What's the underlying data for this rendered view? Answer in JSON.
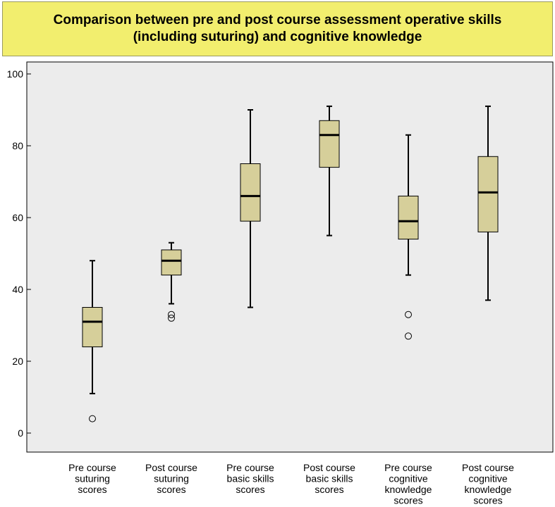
{
  "colors": {
    "title_bg": "#f2ee6e",
    "plot_bg": "#ececec",
    "box_fill": "#d6cf9a",
    "outline": "#000000"
  },
  "chart_data": {
    "type": "boxplot",
    "title": "Comparison between pre and post course assessment operative skills (including suturing) and cognitive knowledge",
    "title_lines": [
      "Comparison between pre and post course assessment operative skills",
      "(including suturing) and cognitive knowledge"
    ],
    "ylim": [
      0,
      100
    ],
    "yticks": [
      0,
      20,
      40,
      60,
      80,
      100
    ],
    "xlabel": "",
    "ylabel": "",
    "categories": [
      {
        "label_lines": [
          "Pre course",
          "suturing",
          "scores"
        ],
        "whisker_low": 11,
        "q1": 24,
        "median": 31,
        "q3": 35,
        "whisker_high": 48,
        "outliers": [
          4
        ]
      },
      {
        "label_lines": [
          "Post course",
          "suturing",
          "scores"
        ],
        "whisker_low": 36,
        "q1": 44,
        "median": 48,
        "q3": 51,
        "whisker_high": 53,
        "outliers": [
          32,
          33
        ]
      },
      {
        "label_lines": [
          "Pre course",
          "basic skills",
          "scores"
        ],
        "whisker_low": 35,
        "q1": 59,
        "median": 66,
        "q3": 75,
        "whisker_high": 90,
        "outliers": []
      },
      {
        "label_lines": [
          "Post course",
          "basic skills",
          "scores"
        ],
        "whisker_low": 55,
        "q1": 74,
        "median": 83,
        "q3": 87,
        "whisker_high": 91,
        "outliers": []
      },
      {
        "label_lines": [
          "Pre course",
          "cognitive",
          "knowledge",
          "scores"
        ],
        "whisker_low": 44,
        "q1": 54,
        "median": 59,
        "q3": 66,
        "whisker_high": 83,
        "outliers": [
          27,
          33
        ]
      },
      {
        "label_lines": [
          "Post course",
          "cognitive",
          "knowledge",
          "scores"
        ],
        "whisker_low": 37,
        "q1": 56,
        "median": 67,
        "q3": 77,
        "whisker_high": 91,
        "outliers": []
      }
    ]
  }
}
